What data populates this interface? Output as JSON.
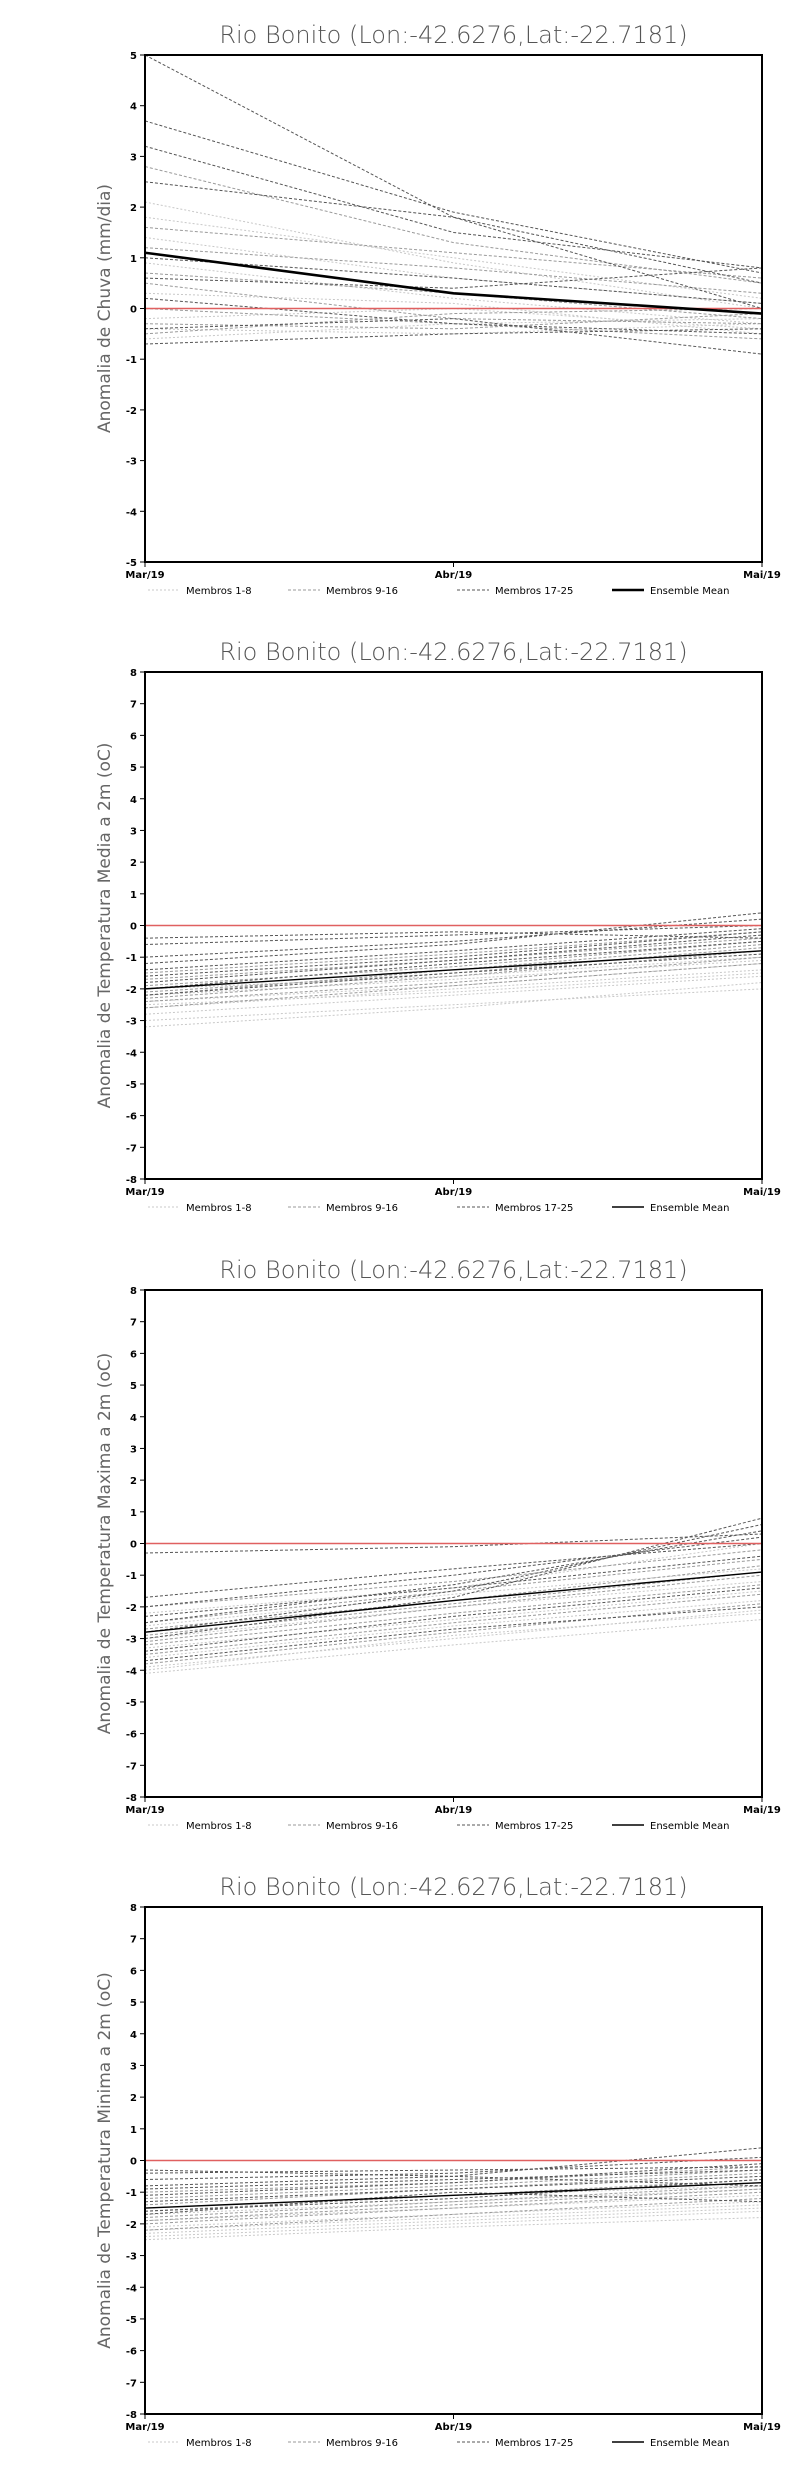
{
  "chart_data": [
    {
      "type": "line",
      "title": "Rio Bonito (Lon:-42.6276,Lat:-22.7181)",
      "ylabel": "Anomalia de Chuva (mm/dia)",
      "x": [
        "Mar/19",
        "Abr/19",
        "Mai/19"
      ],
      "ylim": [
        -5,
        5
      ],
      "yticks": [
        -5,
        -4,
        -3,
        -2,
        -1,
        0,
        1,
        2,
        3,
        4,
        5
      ],
      "legend": [
        "Membros 1-8",
        "Membros 9-16",
        "Membros 17-25",
        "Ensemble Mean"
      ],
      "ensemble_mean": [
        1.1,
        0.3,
        -0.1
      ],
      "zero_line_color": "#e06060",
      "members": [
        [
          2.1,
          0.9,
          0.0
        ],
        [
          1.8,
          1.0,
          0.2
        ],
        [
          0.9,
          0.2,
          -0.3
        ],
        [
          -0.6,
          -0.3,
          -0.2
        ],
        [
          0.3,
          0.1,
          -0.5
        ],
        [
          -0.4,
          -0.5,
          -0.3
        ],
        [
          1.4,
          0.6,
          0.1
        ],
        [
          -0.2,
          0.0,
          -0.4
        ],
        [
          2.8,
          1.3,
          0.5
        ],
        [
          1.2,
          0.8,
          0.3
        ],
        [
          0.5,
          -0.2,
          -0.3
        ],
        [
          -0.3,
          -0.4,
          -0.1
        ],
        [
          0.7,
          0.3,
          -0.2
        ],
        [
          -0.5,
          -0.1,
          0.0
        ],
        [
          1.6,
          1.1,
          0.6
        ],
        [
          0.0,
          -0.3,
          -0.6
        ],
        [
          5.0,
          1.8,
          0.0
        ],
        [
          3.7,
          1.9,
          0.7
        ],
        [
          3.2,
          1.5,
          0.8
        ],
        [
          2.5,
          1.8,
          0.5
        ],
        [
          1.0,
          0.6,
          0.1
        ],
        [
          0.2,
          -0.3,
          -0.5
        ],
        [
          -0.4,
          -0.2,
          -0.9
        ],
        [
          0.6,
          0.4,
          0.8
        ],
        [
          -0.7,
          -0.5,
          -0.4
        ]
      ]
    },
    {
      "type": "line",
      "title": "Rio Bonito (Lon:-42.6276,Lat:-22.7181)",
      "ylabel": "Anomalia de Temperatura Media a 2m (oC)",
      "x": [
        "Mar/19",
        "Abr/19",
        "Mai/19"
      ],
      "ylim": [
        -8,
        8
      ],
      "yticks": [
        -8,
        -7,
        -6,
        -5,
        -4,
        -3,
        -2,
        -1,
        0,
        1,
        2,
        3,
        4,
        5,
        6,
        7,
        8
      ],
      "legend": [
        "Membros 1-8",
        "Membros 9-16",
        "Membros 17-25",
        "Ensemble Mean"
      ],
      "ensemble_mean": [
        -2.0,
        -1.4,
        -0.8
      ],
      "zero_line_color": "#e06060",
      "members": [
        [
          -3.0,
          -2.5,
          -2.0
        ],
        [
          -2.8,
          -2.2,
          -1.6
        ],
        [
          -2.6,
          -2.0,
          -1.4
        ],
        [
          -2.4,
          -1.9,
          -1.2
        ],
        [
          -2.2,
          -1.7,
          -1.1
        ],
        [
          -3.2,
          -2.6,
          -1.8
        ],
        [
          -2.0,
          -1.6,
          -1.0
        ],
        [
          -2.5,
          -2.1,
          -1.5
        ],
        [
          -2.3,
          -1.6,
          -0.8
        ],
        [
          -2.1,
          -1.5,
          -0.7
        ],
        [
          -1.9,
          -1.3,
          -0.5
        ],
        [
          -2.6,
          -1.9,
          -1.2
        ],
        [
          -1.7,
          -1.1,
          -0.4
        ],
        [
          -2.4,
          -1.8,
          -1.0
        ],
        [
          -1.5,
          -0.9,
          -0.2
        ],
        [
          -2.2,
          -1.4,
          -0.6
        ],
        [
          -1.2,
          -0.6,
          0.4
        ],
        [
          -1.0,
          -0.5,
          0.2
        ],
        [
          -1.4,
          -0.8,
          -0.1
        ],
        [
          -0.6,
          -0.3,
          0.0
        ],
        [
          -1.8,
          -1.1,
          -0.3
        ],
        [
          -2.0,
          -1.2,
          -0.5
        ],
        [
          -0.4,
          -0.2,
          -0.4
        ],
        [
          -1.6,
          -1.0,
          -0.2
        ],
        [
          -2.2,
          -1.5,
          -0.9
        ]
      ]
    },
    {
      "type": "line",
      "title": "Rio Bonito (Lon:-42.6276,Lat:-22.7181)",
      "ylabel": "Anomalia de Temperatura Maxima a 2m (oC)",
      "x": [
        "Mar/19",
        "Abr/19",
        "Mai/19"
      ],
      "ylim": [
        -8,
        8
      ],
      "yticks": [
        -8,
        -7,
        -6,
        -5,
        -4,
        -3,
        -2,
        -1,
        0,
        1,
        2,
        3,
        4,
        5,
        6,
        7,
        8
      ],
      "legend": [
        "Membros 1-8",
        "Membros 9-16",
        "Membros 17-25",
        "Ensemble Mean"
      ],
      "ensemble_mean": [
        -2.8,
        -1.8,
        -0.9
      ],
      "zero_line_color": "#e06060",
      "members": [
        [
          -4.1,
          -3.2,
          -2.4
        ],
        [
          -3.9,
          -3.0,
          -2.1
        ],
        [
          -3.6,
          -2.6,
          -1.8
        ],
        [
          -3.3,
          -2.4,
          -1.5
        ],
        [
          -3.0,
          -2.0,
          -1.2
        ],
        [
          -2.6,
          -1.6,
          -0.8
        ],
        [
          -4.0,
          -2.9,
          -2.2
        ],
        [
          -2.2,
          -1.4,
          0.0
        ],
        [
          -3.8,
          -2.8,
          -1.9
        ],
        [
          -3.5,
          -2.5,
          -1.6
        ],
        [
          -3.2,
          -2.2,
          -1.3
        ],
        [
          -2.9,
          -1.9,
          -0.9
        ],
        [
          -2.5,
          -1.5,
          -0.5
        ],
        [
          -2.0,
          -1.2,
          -0.2
        ],
        [
          -3.1,
          -2.0,
          -1.0
        ],
        [
          -2.7,
          -1.8,
          -0.7
        ],
        [
          -3.0,
          -1.7,
          0.8
        ],
        [
          -2.8,
          -1.5,
          0.6
        ],
        [
          -2.5,
          -1.3,
          0.4
        ],
        [
          -2.0,
          -1.0,
          0.2
        ],
        [
          -1.7,
          -0.8,
          0.0
        ],
        [
          -3.4,
          -2.3,
          -1.4
        ],
        [
          -0.3,
          -0.1,
          0.3
        ],
        [
          -2.3,
          -1.4,
          -0.4
        ],
        [
          -3.7,
          -2.7,
          -2.0
        ]
      ]
    },
    {
      "type": "line",
      "title": "Rio Bonito (Lon:-42.6276,Lat:-22.7181)",
      "ylabel": "Anomalia de Temperatura Minima a 2m (oC)",
      "x": [
        "Mar/19",
        "Abr/19",
        "Mai/19"
      ],
      "ylim": [
        -8,
        8
      ],
      "yticks": [
        -8,
        -7,
        -6,
        -5,
        -4,
        -3,
        -2,
        -1,
        0,
        1,
        2,
        3,
        4,
        5,
        6,
        7,
        8
      ],
      "legend": [
        "Membros 1-8",
        "Membros 9-16",
        "Membros 17-25",
        "Ensemble Mean"
      ],
      "ensemble_mean": [
        -1.5,
        -1.1,
        -0.7
      ],
      "zero_line_color": "#e06060",
      "members": [
        [
          -2.5,
          -2.1,
          -1.8
        ],
        [
          -2.3,
          -1.9,
          -1.5
        ],
        [
          -2.1,
          -1.7,
          -1.3
        ],
        [
          -1.9,
          -1.5,
          -1.1
        ],
        [
          -2.4,
          -2.0,
          -1.6
        ],
        [
          -1.7,
          -1.3,
          -0.9
        ],
        [
          -2.2,
          -1.8,
          -1.4
        ],
        [
          -1.5,
          -1.1,
          -0.8
        ],
        [
          -2.0,
          -1.5,
          -1.0
        ],
        [
          -1.8,
          -1.3,
          -0.8
        ],
        [
          -1.6,
          -1.1,
          -0.6
        ],
        [
          -1.4,
          -0.9,
          -0.4
        ],
        [
          -1.2,
          -0.8,
          -0.3
        ],
        [
          -1.9,
          -1.4,
          -0.9
        ],
        [
          -1.0,
          -0.7,
          -0.2
        ],
        [
          -2.2,
          -1.7,
          -1.2
        ],
        [
          -0.8,
          -0.5,
          0.4
        ],
        [
          -0.6,
          -0.4,
          0.1
        ],
        [
          -1.1,
          -0.7,
          -0.1
        ],
        [
          -0.4,
          -0.3,
          -0.2
        ],
        [
          -1.3,
          -0.9,
          -0.5
        ],
        [
          -0.3,
          -0.5,
          -0.8
        ],
        [
          -1.6,
          -1.2,
          -0.6
        ],
        [
          -0.9,
          -0.6,
          -0.3
        ],
        [
          -1.7,
          -1.0,
          -1.3
        ]
      ]
    }
  ]
}
